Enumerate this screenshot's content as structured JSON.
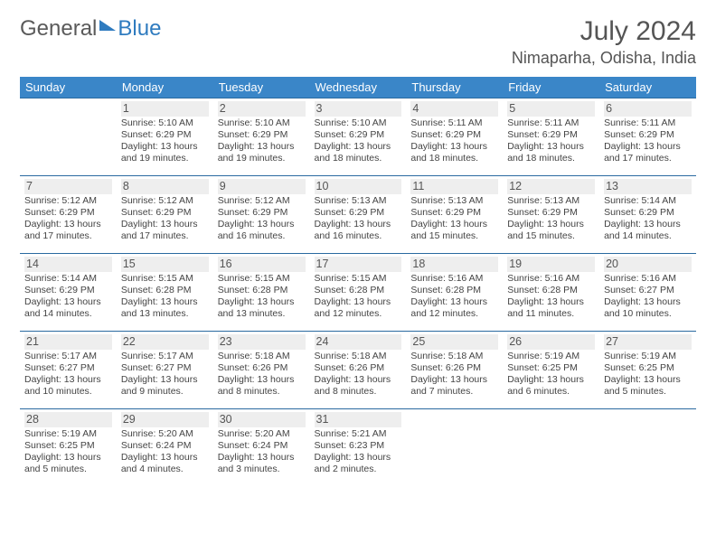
{
  "logo": {
    "part1": "General",
    "part2": "Blue"
  },
  "title": "July 2024",
  "location": "Nimaparha, Odisha, India",
  "weekdays": [
    "Sunday",
    "Monday",
    "Tuesday",
    "Wednesday",
    "Thursday",
    "Friday",
    "Saturday"
  ],
  "style": {
    "header_bg": "#3a86c8",
    "header_fg": "#ffffff",
    "row_border": "#2a6aa0",
    "daynum_bg": "#eeeeee",
    "body_font_size": 10.5,
    "title_font_size": 30,
    "location_font_size": 18
  },
  "weeks": [
    [
      {
        "n": "",
        "sr": "",
        "ss": "",
        "dl": ""
      },
      {
        "n": "1",
        "sr": "5:10 AM",
        "ss": "6:29 PM",
        "dl": "13 hours and 19 minutes."
      },
      {
        "n": "2",
        "sr": "5:10 AM",
        "ss": "6:29 PM",
        "dl": "13 hours and 19 minutes."
      },
      {
        "n": "3",
        "sr": "5:10 AM",
        "ss": "6:29 PM",
        "dl": "13 hours and 18 minutes."
      },
      {
        "n": "4",
        "sr": "5:11 AM",
        "ss": "6:29 PM",
        "dl": "13 hours and 18 minutes."
      },
      {
        "n": "5",
        "sr": "5:11 AM",
        "ss": "6:29 PM",
        "dl": "13 hours and 18 minutes."
      },
      {
        "n": "6",
        "sr": "5:11 AM",
        "ss": "6:29 PM",
        "dl": "13 hours and 17 minutes."
      }
    ],
    [
      {
        "n": "7",
        "sr": "5:12 AM",
        "ss": "6:29 PM",
        "dl": "13 hours and 17 minutes."
      },
      {
        "n": "8",
        "sr": "5:12 AM",
        "ss": "6:29 PM",
        "dl": "13 hours and 17 minutes."
      },
      {
        "n": "9",
        "sr": "5:12 AM",
        "ss": "6:29 PM",
        "dl": "13 hours and 16 minutes."
      },
      {
        "n": "10",
        "sr": "5:13 AM",
        "ss": "6:29 PM",
        "dl": "13 hours and 16 minutes."
      },
      {
        "n": "11",
        "sr": "5:13 AM",
        "ss": "6:29 PM",
        "dl": "13 hours and 15 minutes."
      },
      {
        "n": "12",
        "sr": "5:13 AM",
        "ss": "6:29 PM",
        "dl": "13 hours and 15 minutes."
      },
      {
        "n": "13",
        "sr": "5:14 AM",
        "ss": "6:29 PM",
        "dl": "13 hours and 14 minutes."
      }
    ],
    [
      {
        "n": "14",
        "sr": "5:14 AM",
        "ss": "6:29 PM",
        "dl": "13 hours and 14 minutes."
      },
      {
        "n": "15",
        "sr": "5:15 AM",
        "ss": "6:28 PM",
        "dl": "13 hours and 13 minutes."
      },
      {
        "n": "16",
        "sr": "5:15 AM",
        "ss": "6:28 PM",
        "dl": "13 hours and 13 minutes."
      },
      {
        "n": "17",
        "sr": "5:15 AM",
        "ss": "6:28 PM",
        "dl": "13 hours and 12 minutes."
      },
      {
        "n": "18",
        "sr": "5:16 AM",
        "ss": "6:28 PM",
        "dl": "13 hours and 12 minutes."
      },
      {
        "n": "19",
        "sr": "5:16 AM",
        "ss": "6:28 PM",
        "dl": "13 hours and 11 minutes."
      },
      {
        "n": "20",
        "sr": "5:16 AM",
        "ss": "6:27 PM",
        "dl": "13 hours and 10 minutes."
      }
    ],
    [
      {
        "n": "21",
        "sr": "5:17 AM",
        "ss": "6:27 PM",
        "dl": "13 hours and 10 minutes."
      },
      {
        "n": "22",
        "sr": "5:17 AM",
        "ss": "6:27 PM",
        "dl": "13 hours and 9 minutes."
      },
      {
        "n": "23",
        "sr": "5:18 AM",
        "ss": "6:26 PM",
        "dl": "13 hours and 8 minutes."
      },
      {
        "n": "24",
        "sr": "5:18 AM",
        "ss": "6:26 PM",
        "dl": "13 hours and 8 minutes."
      },
      {
        "n": "25",
        "sr": "5:18 AM",
        "ss": "6:26 PM",
        "dl": "13 hours and 7 minutes."
      },
      {
        "n": "26",
        "sr": "5:19 AM",
        "ss": "6:25 PM",
        "dl": "13 hours and 6 minutes."
      },
      {
        "n": "27",
        "sr": "5:19 AM",
        "ss": "6:25 PM",
        "dl": "13 hours and 5 minutes."
      }
    ],
    [
      {
        "n": "28",
        "sr": "5:19 AM",
        "ss": "6:25 PM",
        "dl": "13 hours and 5 minutes."
      },
      {
        "n": "29",
        "sr": "5:20 AM",
        "ss": "6:24 PM",
        "dl": "13 hours and 4 minutes."
      },
      {
        "n": "30",
        "sr": "5:20 AM",
        "ss": "6:24 PM",
        "dl": "13 hours and 3 minutes."
      },
      {
        "n": "31",
        "sr": "5:21 AM",
        "ss": "6:23 PM",
        "dl": "13 hours and 2 minutes."
      },
      {
        "n": "",
        "sr": "",
        "ss": "",
        "dl": ""
      },
      {
        "n": "",
        "sr": "",
        "ss": "",
        "dl": ""
      },
      {
        "n": "",
        "sr": "",
        "ss": "",
        "dl": ""
      }
    ]
  ]
}
